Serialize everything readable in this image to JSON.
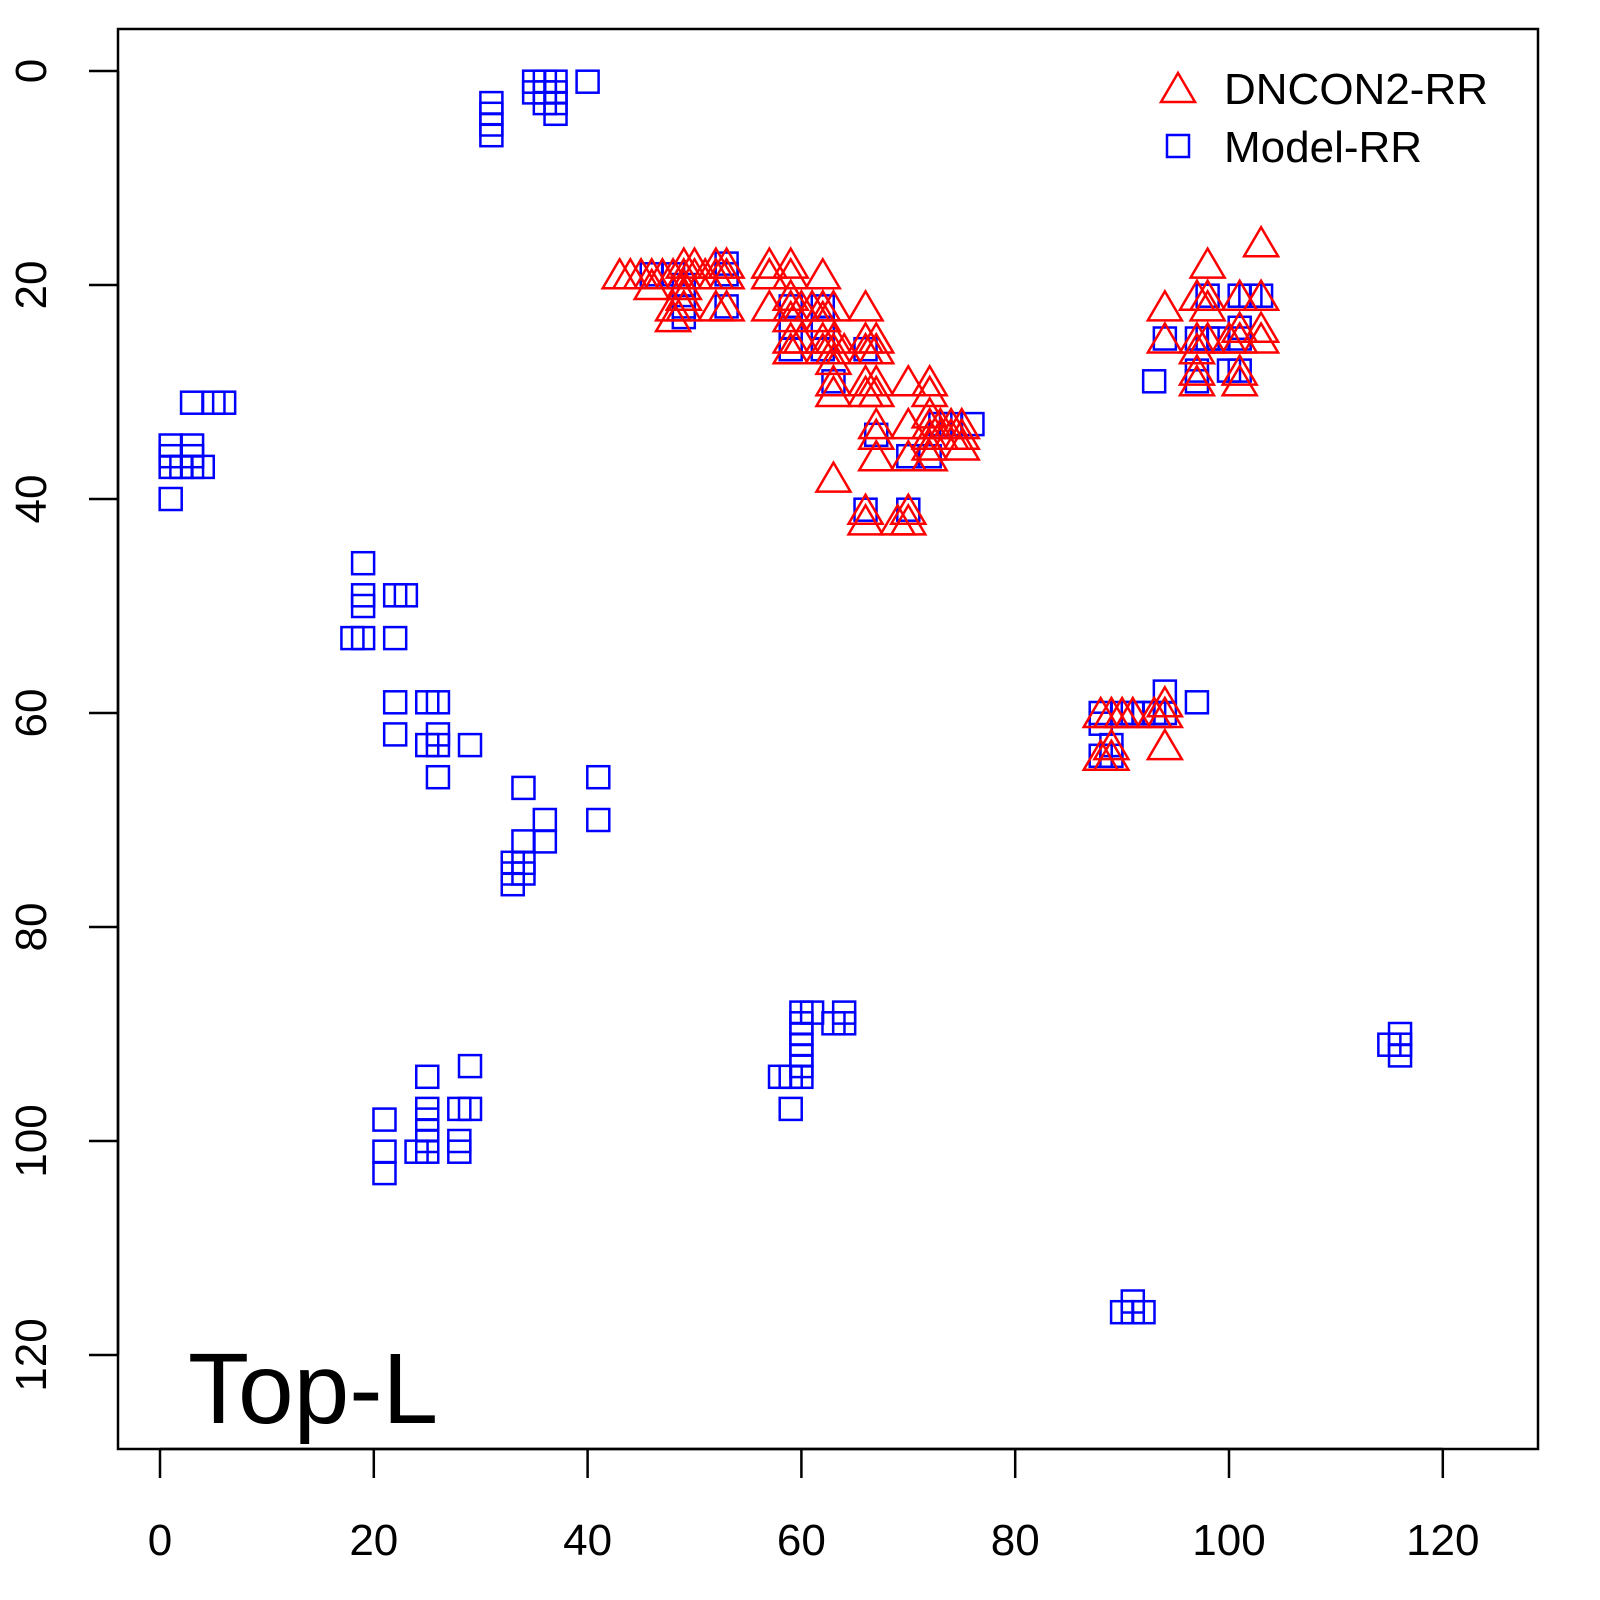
{
  "chart_data": {
    "type": "scatter",
    "title": "",
    "annotation": "Top-L",
    "xlabel": "",
    "ylabel": "",
    "xlim": [
      -2,
      129
    ],
    "ylim": [
      129,
      -4
    ],
    "y_inverted": true,
    "grid": false,
    "legend_position": "top-right",
    "x_ticks": [
      0,
      20,
      40,
      60,
      80,
      100,
      120
    ],
    "x_tick_labels": [
      "0",
      "20",
      "40",
      "60",
      "80",
      "100",
      "120"
    ],
    "y_ticks": [
      0,
      20,
      40,
      60,
      80,
      100,
      120
    ],
    "y_tick_labels": [
      "0",
      "20",
      "40",
      "60",
      "80",
      "100",
      "120"
    ],
    "series": [
      {
        "name": "DNCON2-RR",
        "marker": "triangle",
        "color": "#ff0000",
        "points": [
          [
            43,
            19
          ],
          [
            44,
            19
          ],
          [
            45,
            19
          ],
          [
            46,
            19
          ],
          [
            46,
            20
          ],
          [
            47,
            19
          ],
          [
            48,
            19
          ],
          [
            48,
            22
          ],
          [
            48,
            23
          ],
          [
            49,
            18
          ],
          [
            49,
            19
          ],
          [
            49,
            20
          ],
          [
            49,
            21
          ],
          [
            49,
            22
          ],
          [
            50,
            18
          ],
          [
            50,
            19
          ],
          [
            51,
            19
          ],
          [
            52,
            18
          ],
          [
            52,
            19
          ],
          [
            52,
            22
          ],
          [
            53,
            18
          ],
          [
            53,
            19
          ],
          [
            53,
            22
          ],
          [
            57,
            18
          ],
          [
            57,
            19
          ],
          [
            57,
            22
          ],
          [
            59,
            18
          ],
          [
            59,
            19
          ],
          [
            59,
            21
          ],
          [
            59,
            22
          ],
          [
            59,
            23
          ],
          [
            59,
            25
          ],
          [
            59,
            26
          ],
          [
            60,
            22
          ],
          [
            60,
            25
          ],
          [
            61,
            22
          ],
          [
            62,
            19
          ],
          [
            62,
            22
          ],
          [
            62,
            23
          ],
          [
            62,
            25
          ],
          [
            62,
            26
          ],
          [
            63,
            22
          ],
          [
            63,
            25
          ],
          [
            63,
            26
          ],
          [
            63,
            27
          ],
          [
            63,
            29
          ],
          [
            63,
            30
          ],
          [
            63,
            38
          ],
          [
            64,
            26
          ],
          [
            66,
            22
          ],
          [
            66,
            25
          ],
          [
            66,
            26
          ],
          [
            66,
            29
          ],
          [
            66,
            30
          ],
          [
            67,
            25
          ],
          [
            67,
            26
          ],
          [
            67,
            29
          ],
          [
            67,
            30
          ],
          [
            67,
            33
          ],
          [
            67,
            34
          ],
          [
            67,
            36
          ],
          [
            70,
            29
          ],
          [
            70,
            33
          ],
          [
            70,
            36
          ],
          [
            70,
            41
          ],
          [
            70,
            42
          ],
          [
            69,
            42
          ],
          [
            66,
            41
          ],
          [
            66,
            42
          ],
          [
            72,
            29
          ],
          [
            72,
            30
          ],
          [
            72,
            32
          ],
          [
            72,
            33
          ],
          [
            72,
            34
          ],
          [
            72,
            35
          ],
          [
            72,
            36
          ],
          [
            73,
            33
          ],
          [
            73,
            34
          ],
          [
            74,
            33
          ],
          [
            74,
            34
          ],
          [
            75,
            33
          ],
          [
            75,
            34
          ],
          [
            75,
            35
          ],
          [
            94,
            22
          ],
          [
            94,
            25
          ],
          [
            97,
            21
          ],
          [
            97,
            25
          ],
          [
            97,
            26
          ],
          [
            97,
            28
          ],
          [
            97,
            29
          ],
          [
            98,
            18
          ],
          [
            98,
            21
          ],
          [
            98,
            22
          ],
          [
            98,
            25
          ],
          [
            100,
            25
          ],
          [
            101,
            21
          ],
          [
            101,
            24
          ],
          [
            101,
            25
          ],
          [
            101,
            28
          ],
          [
            101,
            29
          ],
          [
            103,
            16
          ],
          [
            103,
            21
          ],
          [
            103,
            24
          ],
          [
            103,
            25
          ],
          [
            88,
            60
          ],
          [
            88,
            64
          ],
          [
            89,
            60
          ],
          [
            89,
            63
          ],
          [
            89,
            64
          ],
          [
            90,
            60
          ],
          [
            91,
            60
          ],
          [
            93,
            60
          ],
          [
            94,
            59
          ],
          [
            94,
            60
          ],
          [
            94,
            63
          ]
        ]
      },
      {
        "name": "Model-RR",
        "marker": "square",
        "color": "#0000ff",
        "points": [
          [
            31,
            3
          ],
          [
            31,
            4
          ],
          [
            31,
            5
          ],
          [
            31,
            6
          ],
          [
            35,
            1
          ],
          [
            35,
            2
          ],
          [
            36,
            1
          ],
          [
            36,
            2
          ],
          [
            36,
            3
          ],
          [
            37,
            1
          ],
          [
            37,
            2
          ],
          [
            37,
            3
          ],
          [
            37,
            4
          ],
          [
            40,
            1
          ],
          [
            3,
            31
          ],
          [
            5,
            31
          ],
          [
            6,
            31
          ],
          [
            1,
            35
          ],
          [
            1,
            36
          ],
          [
            1,
            37
          ],
          [
            2,
            37
          ],
          [
            3,
            35
          ],
          [
            3,
            36
          ],
          [
            3,
            37
          ],
          [
            4,
            37
          ],
          [
            1,
            40
          ],
          [
            19,
            46
          ],
          [
            19,
            49
          ],
          [
            19,
            50
          ],
          [
            18,
            53
          ],
          [
            19,
            53
          ],
          [
            22,
            49
          ],
          [
            23,
            49
          ],
          [
            22,
            53
          ],
          [
            22,
            59
          ],
          [
            22,
            62
          ],
          [
            25,
            59
          ],
          [
            26,
            59
          ],
          [
            25,
            63
          ],
          [
            26,
            62
          ],
          [
            26,
            63
          ],
          [
            26,
            66
          ],
          [
            29,
            63
          ],
          [
            34,
            67
          ],
          [
            34,
            72
          ],
          [
            36,
            70
          ],
          [
            36,
            72
          ],
          [
            33,
            74
          ],
          [
            33,
            75
          ],
          [
            33,
            76
          ],
          [
            34,
            74
          ],
          [
            34,
            75
          ],
          [
            41,
            66
          ],
          [
            41,
            70
          ],
          [
            21,
            98
          ],
          [
            21,
            101
          ],
          [
            21,
            103
          ],
          [
            25,
            94
          ],
          [
            25,
            97
          ],
          [
            25,
            98
          ],
          [
            25,
            99
          ],
          [
            25,
            100
          ],
          [
            25,
            101
          ],
          [
            24,
            101
          ],
          [
            28,
            97
          ],
          [
            29,
            97
          ],
          [
            28,
            100
          ],
          [
            28,
            101
          ],
          [
            29,
            93
          ],
          [
            58,
            94
          ],
          [
            59,
            94
          ],
          [
            59,
            97
          ],
          [
            60,
            94
          ],
          [
            60,
            93
          ],
          [
            60,
            92
          ],
          [
            60,
            91
          ],
          [
            60,
            90
          ],
          [
            60,
            89
          ],
          [
            60,
            88
          ],
          [
            61,
            88
          ],
          [
            63,
            89
          ],
          [
            64,
            88
          ],
          [
            64,
            89
          ],
          [
            115,
            91
          ],
          [
            116,
            90
          ],
          [
            116,
            91
          ],
          [
            116,
            92
          ],
          [
            90,
            116
          ],
          [
            91,
            115
          ],
          [
            91,
            116
          ],
          [
            92,
            116
          ],
          [
            88,
            60
          ],
          [
            88,
            61
          ],
          [
            88,
            64
          ],
          [
            89,
            64
          ],
          [
            89,
            63
          ],
          [
            90,
            60
          ],
          [
            91,
            60
          ],
          [
            92,
            60
          ],
          [
            93,
            60
          ],
          [
            94,
            58
          ],
          [
            94,
            60
          ],
          [
            97,
            59
          ],
          [
            93,
            29
          ],
          [
            94,
            25
          ],
          [
            97,
            25
          ],
          [
            97,
            28
          ],
          [
            97,
            29
          ],
          [
            98,
            21
          ],
          [
            98,
            25
          ],
          [
            99,
            25
          ],
          [
            100,
            28
          ],
          [
            101,
            24
          ],
          [
            101,
            25
          ],
          [
            101,
            28
          ],
          [
            101,
            21
          ],
          [
            102,
            21
          ],
          [
            103,
            21
          ],
          [
            46,
            19
          ],
          [
            48,
            19
          ],
          [
            49,
            20
          ],
          [
            49,
            22
          ],
          [
            49,
            23
          ],
          [
            53,
            18
          ],
          [
            53,
            19
          ],
          [
            53,
            22
          ],
          [
            59,
            22
          ],
          [
            59,
            24
          ],
          [
            59,
            26
          ],
          [
            62,
            22
          ],
          [
            62,
            24
          ],
          [
            62,
            26
          ],
          [
            63,
            29
          ],
          [
            66,
            26
          ],
          [
            66,
            41
          ],
          [
            67,
            34
          ],
          [
            70,
            41
          ],
          [
            70,
            36
          ],
          [
            72,
            36
          ],
          [
            73,
            33
          ],
          [
            74,
            33
          ],
          [
            76,
            33
          ]
        ]
      }
    ]
  }
}
